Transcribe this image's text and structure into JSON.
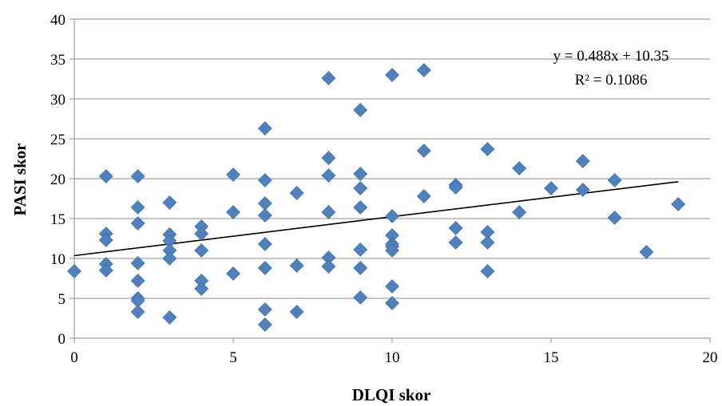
{
  "chart_data": {
    "type": "scatter",
    "xlabel": "DLQI skor",
    "ylabel": "PASI skor",
    "xlim": [
      0,
      20
    ],
    "ylim": [
      0,
      40
    ],
    "x_ticks": [
      "0",
      "5",
      "10",
      "15",
      "20"
    ],
    "y_ticks": [
      "0",
      "5",
      "10",
      "15",
      "20",
      "25",
      "30",
      "35",
      "40"
    ],
    "grid": "horizontal",
    "marker_color": "#4F81BD",
    "trendline": {
      "slope": 0.488,
      "intercept": 10.35,
      "x_range": [
        0,
        19
      ],
      "color": "#000000",
      "equation": "y = 0.488x + 10.35",
      "r_squared": "R² = 0.1086"
    },
    "points": [
      {
        "x": 0,
        "y": 8.4
      },
      {
        "x": 1,
        "y": 20.3
      },
      {
        "x": 1,
        "y": 13.1
      },
      {
        "x": 1,
        "y": 12.3
      },
      {
        "x": 1,
        "y": 9.3
      },
      {
        "x": 1,
        "y": 8.5
      },
      {
        "x": 2,
        "y": 20.3
      },
      {
        "x": 2,
        "y": 16.4
      },
      {
        "x": 2,
        "y": 14.4
      },
      {
        "x": 2,
        "y": 9.4
      },
      {
        "x": 2,
        "y": 7.2
      },
      {
        "x": 2,
        "y": 5.0
      },
      {
        "x": 2,
        "y": 4.7
      },
      {
        "x": 2,
        "y": 3.3
      },
      {
        "x": 3,
        "y": 17.0
      },
      {
        "x": 3,
        "y": 13.0
      },
      {
        "x": 3,
        "y": 12.2
      },
      {
        "x": 3,
        "y": 11.0
      },
      {
        "x": 3,
        "y": 10.0
      },
      {
        "x": 3,
        "y": 2.6
      },
      {
        "x": 4,
        "y": 14.0
      },
      {
        "x": 4,
        "y": 13.1
      },
      {
        "x": 4,
        "y": 11.0
      },
      {
        "x": 4,
        "y": 7.2
      },
      {
        "x": 4,
        "y": 6.2
      },
      {
        "x": 5,
        "y": 20.5
      },
      {
        "x": 5,
        "y": 15.8
      },
      {
        "x": 5,
        "y": 8.1
      },
      {
        "x": 6,
        "y": 26.3
      },
      {
        "x": 6,
        "y": 19.8
      },
      {
        "x": 6,
        "y": 16.9
      },
      {
        "x": 6,
        "y": 15.4
      },
      {
        "x": 6,
        "y": 11.8
      },
      {
        "x": 6,
        "y": 8.8
      },
      {
        "x": 6,
        "y": 3.6
      },
      {
        "x": 6,
        "y": 1.7
      },
      {
        "x": 7,
        "y": 18.2
      },
      {
        "x": 7,
        "y": 9.1
      },
      {
        "x": 7,
        "y": 3.3
      },
      {
        "x": 8,
        "y": 32.6
      },
      {
        "x": 8,
        "y": 22.6
      },
      {
        "x": 8,
        "y": 20.4
      },
      {
        "x": 8,
        "y": 15.8
      },
      {
        "x": 8,
        "y": 10.1
      },
      {
        "x": 8,
        "y": 9.0
      },
      {
        "x": 9,
        "y": 28.6
      },
      {
        "x": 9,
        "y": 20.6
      },
      {
        "x": 9,
        "y": 18.8
      },
      {
        "x": 9,
        "y": 16.4
      },
      {
        "x": 9,
        "y": 11.1
      },
      {
        "x": 9,
        "y": 8.8
      },
      {
        "x": 9,
        "y": 5.1
      },
      {
        "x": 10,
        "y": 33.0
      },
      {
        "x": 10,
        "y": 15.3
      },
      {
        "x": 10,
        "y": 12.9
      },
      {
        "x": 10,
        "y": 11.8
      },
      {
        "x": 10,
        "y": 11.5
      },
      {
        "x": 10,
        "y": 11.0
      },
      {
        "x": 10,
        "y": 6.5
      },
      {
        "x": 10,
        "y": 4.4
      },
      {
        "x": 11,
        "y": 33.6
      },
      {
        "x": 11,
        "y": 23.5
      },
      {
        "x": 11,
        "y": 17.8
      },
      {
        "x": 12,
        "y": 19.2
      },
      {
        "x": 12,
        "y": 18.9
      },
      {
        "x": 12,
        "y": 13.8
      },
      {
        "x": 12,
        "y": 12.0
      },
      {
        "x": 13,
        "y": 23.7
      },
      {
        "x": 13,
        "y": 13.3
      },
      {
        "x": 13,
        "y": 12.0
      },
      {
        "x": 13,
        "y": 8.4
      },
      {
        "x": 14,
        "y": 21.3
      },
      {
        "x": 14,
        "y": 15.8
      },
      {
        "x": 15,
        "y": 18.8
      },
      {
        "x": 16,
        "y": 22.2
      },
      {
        "x": 16,
        "y": 18.6
      },
      {
        "x": 17,
        "y": 19.8
      },
      {
        "x": 17,
        "y": 15.1
      },
      {
        "x": 18,
        "y": 10.8
      },
      {
        "x": 19,
        "y": 16.8
      }
    ]
  }
}
